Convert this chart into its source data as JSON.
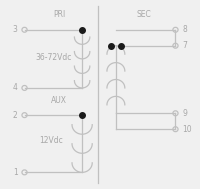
{
  "bg_color": "#f0f0f0",
  "line_color": "#c0c0c0",
  "text_color": "#a8a8a8",
  "dot_color": "#1a1a1a",
  "fig_width": 2.0,
  "fig_height": 1.89,
  "dpi": 100,
  "pri_label": "PRI",
  "sec_label": "SEC",
  "aux_label": "AUX",
  "pri_voltage": "36-72Vdc",
  "aux_voltage": "12Vdc",
  "pin_label_fontsize": 5.5,
  "section_label_fontsize": 5.5,
  "voltage_fontsize": 5.5,
  "lw": 0.9,
  "pin_circle_r": 0.013
}
